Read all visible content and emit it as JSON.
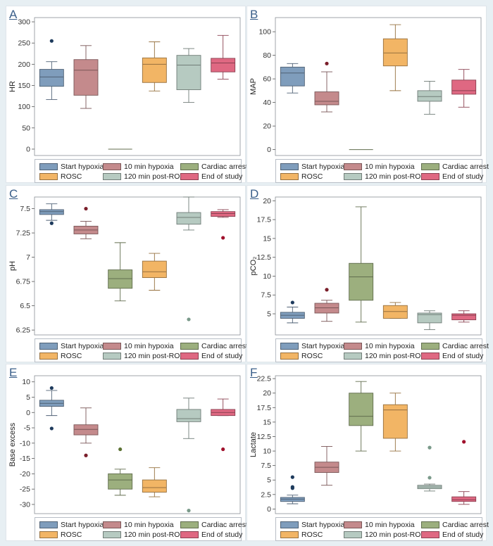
{
  "groups": [
    "Start hypoxia",
    "10 min hypoxia",
    "Cardiac arrest",
    "ROSC",
    "120 min post-ROSC",
    "End of study"
  ],
  "colors": [
    "#7f9dbc",
    "#c48a8c",
    "#9caf7e",
    "#f2b565",
    "#b6cac1",
    "#df6882"
  ],
  "outlier_colors": [
    "#1d3a5c",
    "#7a1e2a",
    "#5c7233",
    "#b36d13",
    "#7a9a8a",
    "#a0112c"
  ],
  "chart_data": [
    {
      "panel": "A",
      "type": "box",
      "ylabel": "HR",
      "ylim": [
        -15,
        310
      ],
      "yticks": [
        0,
        50,
        100,
        150,
        200,
        250,
        300
      ],
      "tick_labels": [
        "0",
        "50",
        "100",
        "150",
        "200",
        "250",
        "300"
      ],
      "boxes": [
        {
          "min": 117,
          "q1": 148,
          "median": 170,
          "q3": 188,
          "max": 206,
          "outliers": [
            255
          ]
        },
        {
          "min": 96,
          "q1": 127,
          "median": 186,
          "q3": 211,
          "max": 244,
          "outliers": []
        },
        {
          "min": 0,
          "q1": 0,
          "median": 0,
          "q3": 0,
          "max": 0,
          "outliers": []
        },
        {
          "min": 137,
          "q1": 157,
          "median": 200,
          "q3": 215,
          "max": 253,
          "outliers": []
        },
        {
          "min": 110,
          "q1": 140,
          "median": 198,
          "q3": 221,
          "max": 237,
          "outliers": []
        },
        {
          "min": 165,
          "q1": 182,
          "median": 203,
          "q3": 214,
          "max": 268,
          "outliers": []
        }
      ]
    },
    {
      "panel": "B",
      "type": "box",
      "ylabel": "MAP",
      "ylim": [
        -5,
        112
      ],
      "yticks": [
        0,
        20,
        40,
        60,
        80,
        100
      ],
      "tick_labels": [
        "0",
        "20",
        "40",
        "60",
        "80",
        "100"
      ],
      "boxes": [
        {
          "min": 48,
          "q1": 54,
          "median": 65,
          "q3": 70,
          "max": 73,
          "outliers": []
        },
        {
          "min": 32,
          "q1": 38,
          "median": 41,
          "q3": 49,
          "max": 66,
          "outliers": [
            73
          ]
        },
        {
          "min": 0,
          "q1": 0,
          "median": 0,
          "q3": 0,
          "max": 0,
          "outliers": []
        },
        {
          "min": 50,
          "q1": 71,
          "median": 82,
          "q3": 94,
          "max": 106,
          "outliers": []
        },
        {
          "min": 30,
          "q1": 41,
          "median": 45,
          "q3": 50,
          "max": 58,
          "outliers": []
        },
        {
          "min": 36,
          "q1": 47,
          "median": 50,
          "q3": 59,
          "max": 68,
          "outliers": []
        }
      ]
    },
    {
      "panel": "C",
      "type": "box",
      "ylabel": "pH",
      "ylim": [
        6.2,
        7.62
      ],
      "yticks": [
        6.25,
        6.5,
        6.75,
        7,
        7.25,
        7.5
      ],
      "tick_labels": [
        "6.25",
        "6.5",
        "6.75",
        "7",
        "7.25",
        "7.5"
      ],
      "boxes": [
        {
          "min": 7.38,
          "q1": 7.44,
          "median": 7.47,
          "q3": 7.49,
          "max": 7.55,
          "outliers": [
            7.35
          ]
        },
        {
          "min": 7.19,
          "q1": 7.24,
          "median": 7.28,
          "q3": 7.32,
          "max": 7.37,
          "outliers": [
            7.5
          ]
        },
        {
          "min": 6.55,
          "q1": 6.68,
          "median": 6.78,
          "q3": 6.87,
          "max": 7.15,
          "outliers": []
        },
        {
          "min": 6.66,
          "q1": 6.79,
          "median": 6.85,
          "q3": 6.96,
          "max": 7.04,
          "outliers": []
        },
        {
          "min": 7.28,
          "q1": 7.34,
          "median": 7.41,
          "q3": 7.46,
          "max": 7.62,
          "outliers": [
            6.36
          ]
        },
        {
          "min": 7.41,
          "q1": 7.42,
          "median": 7.45,
          "q3": 7.47,
          "max": 7.49,
          "outliers": [
            7.2
          ]
        }
      ]
    },
    {
      "panel": "D",
      "type": "box",
      "ylabel": "pCO₂",
      "ylim": [
        2.2,
        20.5
      ],
      "yticks": [
        5,
        7.5,
        10,
        12.5,
        15,
        17.5,
        20
      ],
      "tick_labels": [
        "5",
        "7.5",
        "10",
        "12.5",
        "15",
        "17.5",
        "20"
      ],
      "boxes": [
        {
          "min": 3.8,
          "q1": 4.4,
          "median": 4.8,
          "q3": 5.2,
          "max": 5.9,
          "outliers": [
            6.5
          ]
        },
        {
          "min": 4.0,
          "q1": 5.1,
          "median": 5.8,
          "q3": 6.4,
          "max": 6.8,
          "outliers": [
            8.2
          ]
        },
        {
          "min": 3.9,
          "q1": 6.8,
          "median": 9.9,
          "q3": 11.7,
          "max": 19.2,
          "outliers": []
        },
        {
          "min": 4.4,
          "q1": 4.4,
          "median": 5.3,
          "q3": 6.1,
          "max": 6.5,
          "outliers": []
        },
        {
          "min": 2.9,
          "q1": 3.8,
          "median": 4.9,
          "q3": 5.1,
          "max": 5.4,
          "outliers": []
        },
        {
          "min": 3.9,
          "q1": 4.2,
          "median": 4.8,
          "q3": 5.0,
          "max": 5.4,
          "outliers": []
        }
      ]
    },
    {
      "panel": "E",
      "type": "box",
      "ylabel": "Base excess",
      "ylim": [
        -33,
        12
      ],
      "yticks": [
        -30,
        -25,
        -20,
        -15,
        -10,
        -5,
        0,
        5,
        10
      ],
      "tick_labels": [
        "-30",
        "-25",
        "-20",
        "-15",
        "-10",
        "-5",
        "0",
        "5",
        "10"
      ],
      "boxes": [
        {
          "min": -1.0,
          "q1": 2.0,
          "median": 3.0,
          "q3": 4.0,
          "max": 7.2,
          "outliers": [
            8.0,
            -5.2
          ]
        },
        {
          "min": -10.0,
          "q1": -7.3,
          "median": -5.5,
          "q3": -4.0,
          "max": 1.5,
          "outliers": [
            -14.0
          ]
        },
        {
          "min": -27.0,
          "q1": -25.0,
          "median": -22.0,
          "q3": -20.0,
          "max": -18.5,
          "outliers": [
            -12.0
          ]
        },
        {
          "min": -27.5,
          "q1": -26.0,
          "median": -24.5,
          "q3": -22.0,
          "max": -18.0,
          "outliers": []
        },
        {
          "min": -8.5,
          "q1": -3.0,
          "median": -2.0,
          "q3": 1.0,
          "max": 4.7,
          "outliers": [
            -32.0
          ]
        },
        {
          "min": -1.0,
          "q1": -1.0,
          "median": 0.0,
          "q3": 1.0,
          "max": 4.4,
          "outliers": [
            -12.0
          ]
        }
      ]
    },
    {
      "panel": "F",
      "type": "box",
      "ylabel": "Lactate",
      "ylim": [
        -0.8,
        23
      ],
      "yticks": [
        0,
        2.5,
        5,
        7.5,
        10,
        12.5,
        15,
        17.5,
        20,
        22.5
      ],
      "tick_labels": [
        "0",
        "2.5",
        "5",
        "7.5",
        "10",
        "12.5",
        "15",
        "17.5",
        "20",
        "22.5"
      ],
      "boxes": [
        {
          "min": 0.9,
          "q1": 1.3,
          "median": 1.7,
          "q3": 2.0,
          "max": 2.4,
          "outliers": [
            5.5,
            3.8,
            3.6
          ]
        },
        {
          "min": 4.1,
          "q1": 6.3,
          "median": 7.2,
          "q3": 8.1,
          "max": 10.8,
          "outliers": []
        },
        {
          "min": 10.0,
          "q1": 14.4,
          "median": 16.0,
          "q3": 20.0,
          "max": 22.0,
          "outliers": []
        },
        {
          "min": 10.0,
          "q1": 12.2,
          "median": 17.1,
          "q3": 18.0,
          "max": 20.0,
          "outliers": []
        },
        {
          "min": 3.1,
          "q1": 3.5,
          "median": 3.8,
          "q3": 4.1,
          "max": 4.3,
          "outliers": [
            10.6,
            5.4
          ]
        },
        {
          "min": 0.8,
          "q1": 1.3,
          "median": 1.6,
          "q3": 2.1,
          "max": 3.0,
          "outliers": [
            11.6
          ]
        }
      ]
    }
  ]
}
